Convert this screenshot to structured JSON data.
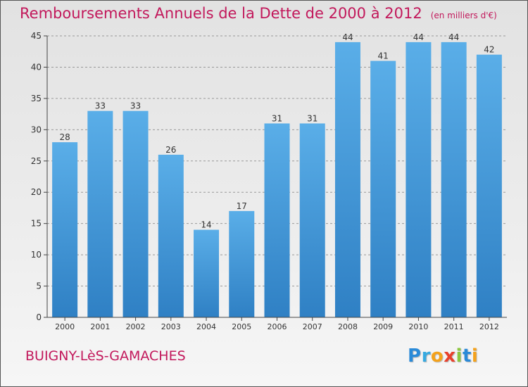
{
  "title": "Remboursements Annuels de la Dette de 2000 à 2012",
  "subtitle": "(en milliers d'€)",
  "commune": "BUIGNY-LèS-GAMACHES",
  "logo": {
    "letters": [
      {
        "char": "P",
        "color": "#2a8ad8"
      },
      {
        "char": "r",
        "color": "#36a9e0"
      },
      {
        "char": "o",
        "color": "#f4a21b"
      },
      {
        "char": "x",
        "color": "#e8412c"
      },
      {
        "char": "i",
        "color": "#8cc63f"
      },
      {
        "char": "t",
        "color": "#2a8ad8"
      },
      {
        "char": "i",
        "color": "#f4a21b"
      }
    ]
  },
  "colors": {
    "title": "#c2185b",
    "bar_top": "#5aaee8",
    "bar_bottom": "#2f80c4",
    "grid": "#999999"
  },
  "chart_data": {
    "type": "bar",
    "title": "Remboursements Annuels de la Dette de 2000 à 2012",
    "subtitle": "(en milliers d'€)",
    "xlabel": "",
    "ylabel": "",
    "categories": [
      "2000",
      "2001",
      "2002",
      "2003",
      "2004",
      "2005",
      "2006",
      "2007",
      "2008",
      "2009",
      "2010",
      "2011",
      "2012"
    ],
    "values": [
      28,
      33,
      33,
      26,
      14,
      17,
      31,
      31,
      44,
      41,
      44,
      44,
      42
    ],
    "ylim": [
      0,
      45
    ],
    "yticks": [
      0,
      5,
      10,
      15,
      20,
      25,
      30,
      35,
      40,
      45
    ],
    "grid": true,
    "data_labels": true
  }
}
